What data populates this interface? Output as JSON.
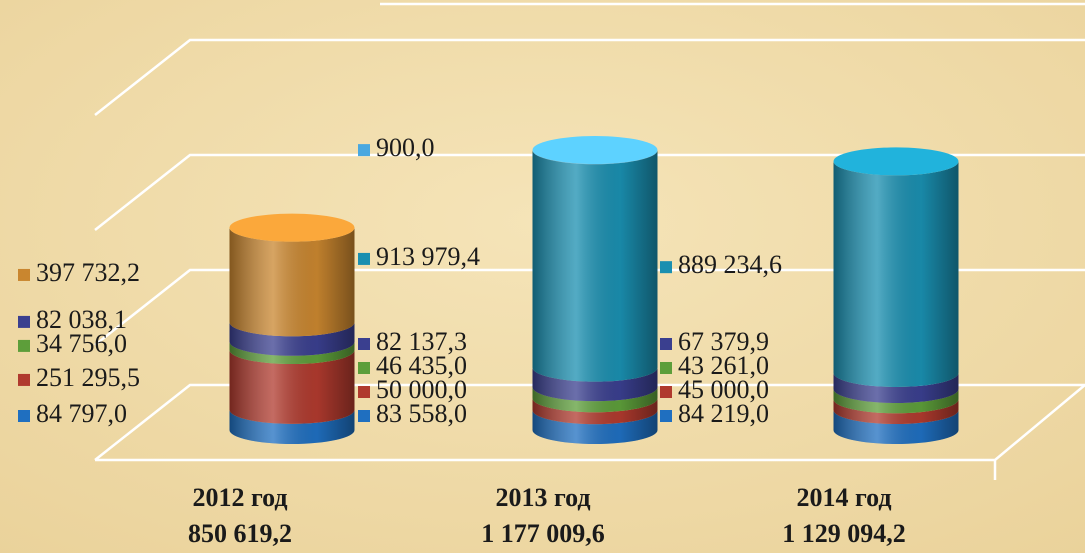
{
  "chart_data": {
    "type": "bar",
    "stacked": true,
    "categories": [
      "2012 год",
      "2013 год",
      "2014 год"
    ],
    "totals": [
      850619.2,
      1177009.6,
      1129094.2
    ],
    "total_labels": [
      "850 619,2",
      "1 177 009,6",
      "1 129 094,2"
    ],
    "series": [
      {
        "color": "#1f6fc0",
        "values": [
          84797.0,
          83558.0,
          84219.0
        ],
        "value_labels": [
          "84 797,0",
          "83 558,0",
          "84 219,0"
        ]
      },
      {
        "color": "#b03a2e",
        "values": [
          251295.5,
          50000.0,
          45000.0
        ],
        "value_labels": [
          "251 295,5",
          "50 000,0",
          "45 000,0"
        ]
      },
      {
        "color": "#5d9e3a",
        "values": [
          34756.0,
          46435.0,
          43261.0
        ],
        "value_labels": [
          "34 756,0",
          "46 435,0",
          "43 261,0"
        ]
      },
      {
        "color": "#3a3f8f",
        "values": [
          82038.1,
          82137.3,
          67379.9
        ],
        "value_labels": [
          "82 038,1",
          "82 137,3",
          "67 379,9"
        ]
      },
      {
        "color": "#c9862f",
        "values": [
          397732.2,
          null,
          null
        ],
        "value_labels": [
          "397 732,2",
          null,
          null
        ]
      },
      {
        "color": "#1a8fb0",
        "values": [
          null,
          913979.4,
          889234.6
        ],
        "value_labels": [
          null,
          "913 979,4",
          "889 234,6"
        ]
      },
      {
        "color": "#4aa8e0",
        "values": [
          null,
          900.0,
          null
        ],
        "value_labels": [
          null,
          "900,0",
          null
        ]
      }
    ]
  }
}
